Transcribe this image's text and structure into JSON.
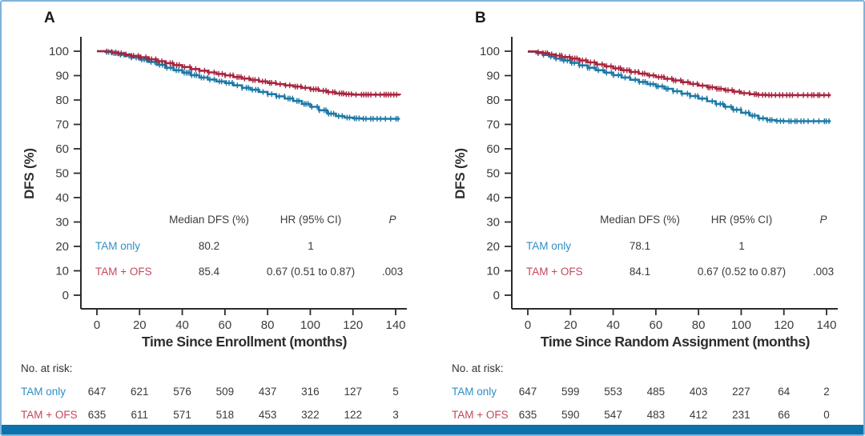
{
  "ui": {
    "colors": {
      "curve_blue": "#1B79A6",
      "curve_red": "#A8243F",
      "text_blue": "#2E8FC6",
      "text_red": "#C4485C",
      "axis": "#2B2B2B",
      "tick_text": "#3D3D3D",
      "title_text": "#2E2E2E",
      "number_text": "#3A3A3A",
      "risk_label_text": "#333333",
      "border": "#7FB3DB",
      "bottom_bar": "#0B72AC"
    }
  },
  "chart_data": [
    {
      "type": "line",
      "subtype": "kaplan-meier-step",
      "panel_label": "A",
      "xlabel": "Time Since Enrollment (months)",
      "ylabel": "DFS (%)",
      "xticks": [
        0,
        20,
        40,
        60,
        80,
        100,
        120,
        140
      ],
      "yticks": [
        0,
        10,
        20,
        30,
        40,
        50,
        60,
        70,
        80,
        90,
        100
      ],
      "xlim": [
        0,
        148
      ],
      "ylim": [
        0,
        105
      ],
      "grid": false,
      "legend_position": "none",
      "series": [
        {
          "name": "TAM only",
          "color": "blue",
          "points": [
            [
              0,
              100
            ],
            [
              4,
              99.7
            ],
            [
              7,
              99.2
            ],
            [
              10,
              98.6
            ],
            [
              13,
              98.1
            ],
            [
              16,
              97.4
            ],
            [
              20,
              96.6
            ],
            [
              24,
              95.6
            ],
            [
              28,
              94.4
            ],
            [
              32,
              93.2
            ],
            [
              36,
              92.2
            ],
            [
              40,
              91.2
            ],
            [
              44,
              90.2
            ],
            [
              48,
              89.2
            ],
            [
              52,
              88.4
            ],
            [
              56,
              87.6
            ],
            [
              60,
              87.0
            ],
            [
              64,
              86.0
            ],
            [
              68,
              85.0
            ],
            [
              72,
              84.2
            ],
            [
              76,
              83.3
            ],
            [
              80,
              82.4
            ],
            [
              84,
              81.5
            ],
            [
              88,
              80.6
            ],
            [
              92,
              79.6
            ],
            [
              96,
              78.4
            ],
            [
              100,
              77.2
            ],
            [
              104,
              75.8
            ],
            [
              108,
              74.4
            ],
            [
              112,
              73.4
            ],
            [
              116,
              72.8
            ],
            [
              120,
              72.5
            ],
            [
              124,
              72.3
            ],
            [
              142,
              72.3
            ]
          ]
        },
        {
          "name": "TAM + OFS",
          "color": "red",
          "points": [
            [
              0,
              100
            ],
            [
              4,
              99.9
            ],
            [
              7,
              99.5
            ],
            [
              10,
              99.1
            ],
            [
              13,
              98.6
            ],
            [
              16,
              98.1
            ],
            [
              20,
              97.5
            ],
            [
              24,
              96.7
            ],
            [
              28,
              95.9
            ],
            [
              32,
              95.1
            ],
            [
              36,
              94.3
            ],
            [
              40,
              93.5
            ],
            [
              44,
              92.7
            ],
            [
              48,
              92.0
            ],
            [
              52,
              91.3
            ],
            [
              56,
              90.7
            ],
            [
              60,
              90.1
            ],
            [
              64,
              89.4
            ],
            [
              68,
              88.8
            ],
            [
              72,
              88.2
            ],
            [
              76,
              87.6
            ],
            [
              80,
              87.0
            ],
            [
              84,
              86.5
            ],
            [
              88,
              86.0
            ],
            [
              92,
              85.5
            ],
            [
              96,
              85.0
            ],
            [
              100,
              84.4
            ],
            [
              104,
              83.8
            ],
            [
              108,
              83.2
            ],
            [
              112,
              82.7
            ],
            [
              116,
              82.4
            ],
            [
              120,
              82.2
            ],
            [
              142,
              82.0
            ]
          ]
        }
      ],
      "stats_table": {
        "col_headers": [
          "Median DFS (%)",
          "HR (95% CI)",
          "P"
        ],
        "rows": [
          {
            "name": "TAM only",
            "median_dfs": "80.2",
            "hr": "1",
            "p": ""
          },
          {
            "name": "TAM + OFS",
            "median_dfs": "85.4",
            "hr": "0.67 (0.51 to 0.87)",
            "p": ".003"
          }
        ]
      },
      "at_risk": {
        "label": "No. at risk:",
        "rows": [
          {
            "name": "TAM only",
            "values": [
              "647",
              "621",
              "576",
              "509",
              "437",
              "316",
              "127",
              "5"
            ]
          },
          {
            "name": "TAM + OFS",
            "values": [
              "635",
              "611",
              "571",
              "518",
              "453",
              "322",
              "122",
              "3"
            ]
          }
        ]
      }
    },
    {
      "type": "line",
      "subtype": "kaplan-meier-step",
      "panel_label": "B",
      "xlabel": "Time Since Random Assignment (months)",
      "ylabel": "DFS (%)",
      "xticks": [
        0,
        20,
        40,
        60,
        80,
        100,
        120,
        140
      ],
      "yticks": [
        0,
        10,
        20,
        30,
        40,
        50,
        60,
        70,
        80,
        90,
        100
      ],
      "xlim": [
        0,
        148
      ],
      "ylim": [
        0,
        105
      ],
      "grid": false,
      "legend_position": "none",
      "series": [
        {
          "name": "TAM only",
          "color": "blue",
          "points": [
            [
              0,
              99.8
            ],
            [
              4,
              99.2
            ],
            [
              7,
              98.5
            ],
            [
              10,
              97.8
            ],
            [
              13,
              97.0
            ],
            [
              16,
              96.2
            ],
            [
              20,
              95.2
            ],
            [
              24,
              94.2
            ],
            [
              28,
              93.2
            ],
            [
              32,
              92.2
            ],
            [
              36,
              91.2
            ],
            [
              40,
              90.2
            ],
            [
              44,
              89.2
            ],
            [
              48,
              88.3
            ],
            [
              52,
              87.4
            ],
            [
              56,
              86.5
            ],
            [
              60,
              85.6
            ],
            [
              64,
              84.6
            ],
            [
              68,
              83.6
            ],
            [
              72,
              82.6
            ],
            [
              76,
              81.6
            ],
            [
              80,
              80.6
            ],
            [
              84,
              79.5
            ],
            [
              88,
              78.4
            ],
            [
              92,
              77.2
            ],
            [
              96,
              76.0
            ],
            [
              100,
              74.8
            ],
            [
              104,
              73.6
            ],
            [
              108,
              72.5
            ],
            [
              112,
              71.8
            ],
            [
              116,
              71.4
            ],
            [
              120,
              71.3
            ],
            [
              142,
              71.3
            ]
          ]
        },
        {
          "name": "TAM + OFS",
          "color": "red",
          "points": [
            [
              0,
              99.9
            ],
            [
              4,
              99.6
            ],
            [
              7,
              99.2
            ],
            [
              10,
              98.7
            ],
            [
              13,
              98.2
            ],
            [
              16,
              97.6
            ],
            [
              20,
              97.0
            ],
            [
              24,
              96.2
            ],
            [
              28,
              95.4
            ],
            [
              32,
              94.6
            ],
            [
              36,
              93.8
            ],
            [
              40,
              93.0
            ],
            [
              44,
              92.2
            ],
            [
              48,
              91.5
            ],
            [
              52,
              90.8
            ],
            [
              56,
              90.1
            ],
            [
              60,
              89.4
            ],
            [
              64,
              88.7
            ],
            [
              68,
              88.0
            ],
            [
              72,
              87.3
            ],
            [
              76,
              86.6
            ],
            [
              80,
              85.9
            ],
            [
              84,
              85.2
            ],
            [
              88,
              84.6
            ],
            [
              92,
              84.0
            ],
            [
              96,
              83.4
            ],
            [
              100,
              82.8
            ],
            [
              104,
              82.4
            ],
            [
              108,
              82.1
            ],
            [
              112,
              82.0
            ],
            [
              142,
              82.0
            ]
          ]
        }
      ],
      "stats_table": {
        "col_headers": [
          "Median DFS (%)",
          "HR (95% CI)",
          "P"
        ],
        "rows": [
          {
            "name": "TAM only",
            "median_dfs": "78.1",
            "hr": "1",
            "p": ""
          },
          {
            "name": "TAM + OFS",
            "median_dfs": "84.1",
            "hr": "0.67 (0.52 to 0.87)",
            "p": ".003"
          }
        ]
      },
      "at_risk": {
        "label": "No. at risk:",
        "rows": [
          {
            "name": "TAM only",
            "values": [
              "647",
              "599",
              "553",
              "485",
              "403",
              "227",
              "64",
              "2"
            ]
          },
          {
            "name": "TAM + OFS",
            "values": [
              "635",
              "590",
              "547",
              "483",
              "412",
              "231",
              "66",
              "0"
            ]
          }
        ]
      }
    }
  ]
}
